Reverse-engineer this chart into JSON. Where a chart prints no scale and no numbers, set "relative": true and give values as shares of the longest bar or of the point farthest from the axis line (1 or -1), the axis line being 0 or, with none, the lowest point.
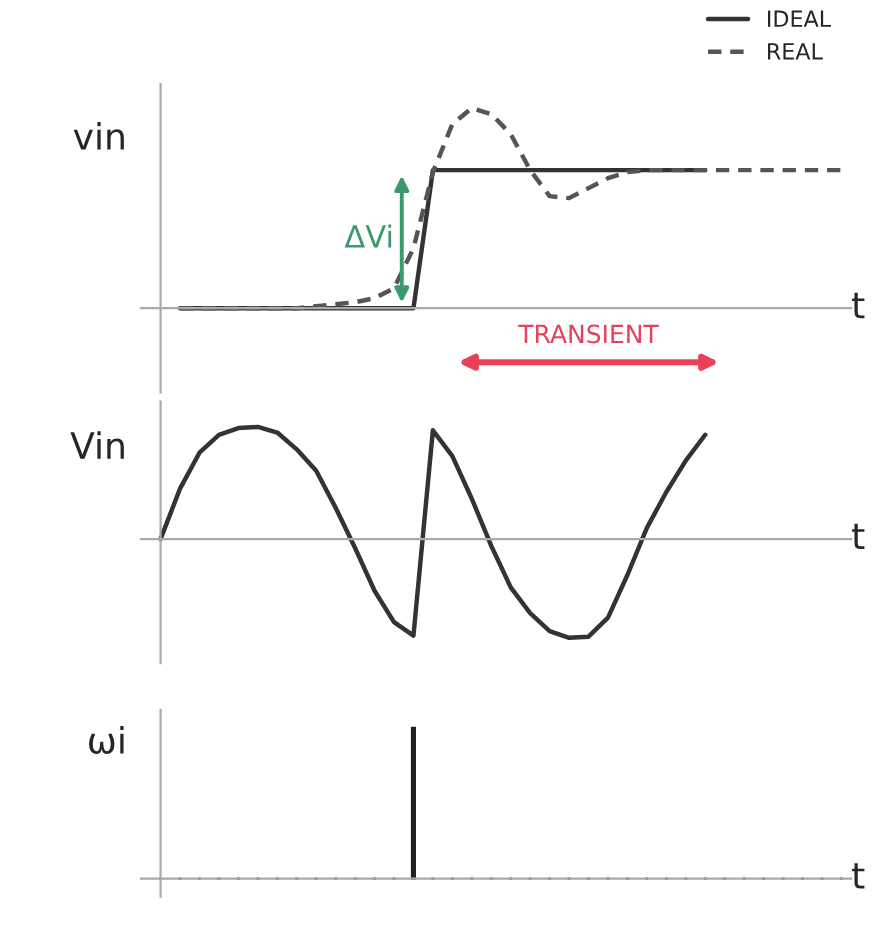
{
  "chart_data": [
    {
      "type": "line",
      "relative": true,
      "ylabel": "vin",
      "xlabel": "t",
      "legend": "top right",
      "categories": [
        null,
        null,
        null,
        null,
        null,
        null,
        null,
        null,
        null,
        null,
        null,
        null,
        null,
        null,
        null,
        null,
        null,
        null,
        null,
        null,
        null,
        null,
        null,
        null,
        null,
        null,
        null,
        null,
        null,
        null,
        null,
        null,
        null,
        null,
        null,
        null
      ],
      "series": [
        {
          "name": "IDEAL",
          "color": "#333333",
          "line_style": "solid",
          "values": [
            null,
            0,
            0,
            0,
            0,
            0,
            0,
            0,
            0,
            0,
            0,
            0,
            0,
            0,
            0.69,
            0.69,
            0.69,
            0.69,
            0.69,
            0.69,
            0.69,
            0.69,
            0.69,
            0.69,
            0.69,
            0.69,
            0.69,
            0.69,
            0.69,
            null,
            null,
            null,
            null,
            null,
            null,
            null
          ]
        },
        {
          "name": "REAL",
          "color": "#555555",
          "line_style": "dashed",
          "values": [
            null,
            0,
            0,
            0,
            0,
            0,
            0,
            0,
            0.01,
            0.02,
            0.03,
            0.05,
            0.1,
            0.3,
            0.68,
            0.92,
            1.0,
            0.97,
            0.87,
            0.69,
            0.56,
            0.55,
            0.6,
            0.65,
            0.68,
            0.69,
            0.69,
            0.69,
            0.69,
            0.69,
            0.69,
            0.69,
            0.69,
            0.69,
            0.69,
            0.69
          ]
        }
      ],
      "annotations": [
        "ΔVi",
        "TRANSIENT"
      ]
    },
    {
      "type": "line",
      "relative": true,
      "ylabel": "Vin",
      "xlabel": "t",
      "categories": [
        null,
        null,
        null,
        null,
        null,
        null,
        null,
        null,
        null,
        null,
        null,
        null,
        null,
        null,
        null,
        null,
        null,
        null,
        null,
        null,
        null,
        null,
        null,
        null,
        null,
        null,
        null,
        null,
        null,
        null,
        null,
        null,
        null,
        null,
        null,
        null
      ],
      "series": [
        {
          "color": "#333333",
          "values": [
            0,
            0.45,
            0.77,
            0.93,
            0.99,
            1.0,
            0.95,
            0.8,
            0.61,
            0.28,
            -0.08,
            -0.46,
            -0.74,
            -0.86,
            0.97,
            0.74,
            0.36,
            -0.06,
            -0.43,
            -0.66,
            -0.82,
            -0.88,
            -0.87,
            -0.7,
            -0.32,
            0.1,
            0.42,
            0.7,
            0.93,
            null,
            null,
            null,
            null,
            null,
            null,
            null
          ]
        }
      ]
    },
    {
      "type": "bar",
      "relative": true,
      "ylabel": "ωi",
      "xlabel": "t",
      "categories": [
        null,
        null,
        null,
        null,
        null,
        null,
        null,
        null,
        null,
        null,
        null,
        null,
        null,
        null,
        null,
        null,
        null,
        null,
        null,
        null,
        null,
        null,
        null,
        null,
        null,
        null,
        null,
        null,
        null,
        null,
        null,
        null,
        null,
        null,
        null,
        null
      ],
      "series": [
        {
          "color": "#222222",
          "values": [
            null,
            null,
            null,
            null,
            null,
            null,
            null,
            null,
            null,
            null,
            null,
            null,
            null,
            1,
            null,
            null,
            null,
            null,
            null,
            null,
            null,
            null,
            null,
            null,
            null,
            null,
            null,
            null,
            null,
            null,
            null,
            null,
            null,
            null,
            null,
            null
          ]
        }
      ]
    }
  ]
}
